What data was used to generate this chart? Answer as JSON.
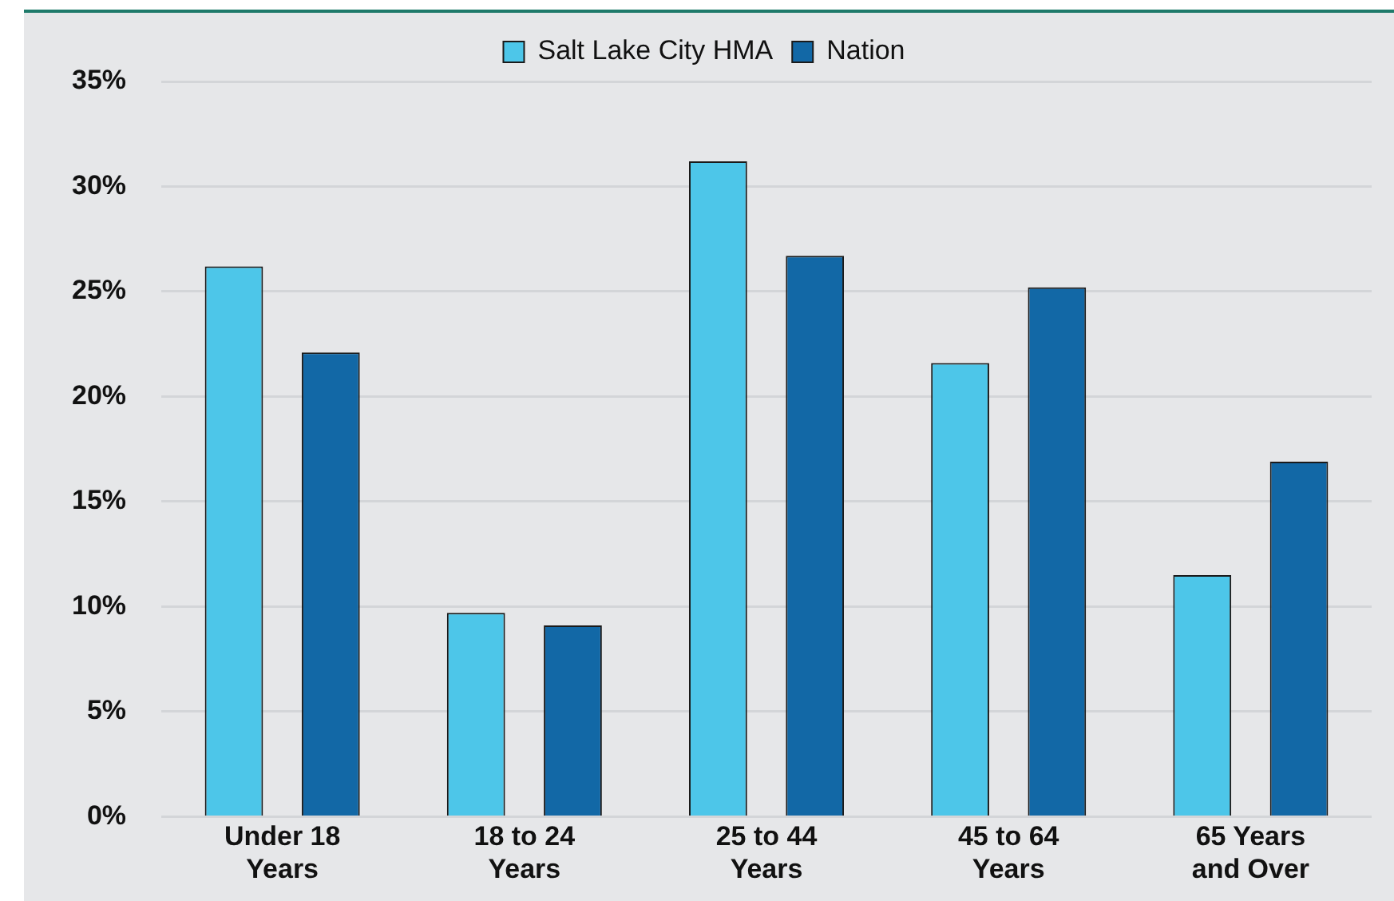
{
  "chart_data": {
    "type": "bar",
    "categories": [
      "Under 18\nYears",
      "18 to 24\nYears",
      "25 to 44\nYears",
      "45 to 64\nYears",
      "65 Years\nand Over"
    ],
    "series": [
      {
        "name": "Salt Lake City HMA",
        "color": "#4dc6e9",
        "values": [
          26.2,
          9.7,
          31.2,
          21.6,
          11.5
        ]
      },
      {
        "name": "Nation",
        "color": "#1268a6",
        "values": [
          22.1,
          9.1,
          26.7,
          25.2,
          16.9
        ]
      }
    ],
    "ylim": [
      0,
      35
    ],
    "yticks": [
      {
        "value": 0,
        "label": "0%"
      },
      {
        "value": 5,
        "label": "5%"
      },
      {
        "value": 10,
        "label": "10%"
      },
      {
        "value": 15,
        "label": "15%"
      },
      {
        "value": 20,
        "label": "20%"
      },
      {
        "value": 25,
        "label": "25%"
      },
      {
        "value": 30,
        "label": "30%"
      },
      {
        "value": 35,
        "label": "35%"
      }
    ],
    "grid": "y",
    "legend": "top"
  }
}
